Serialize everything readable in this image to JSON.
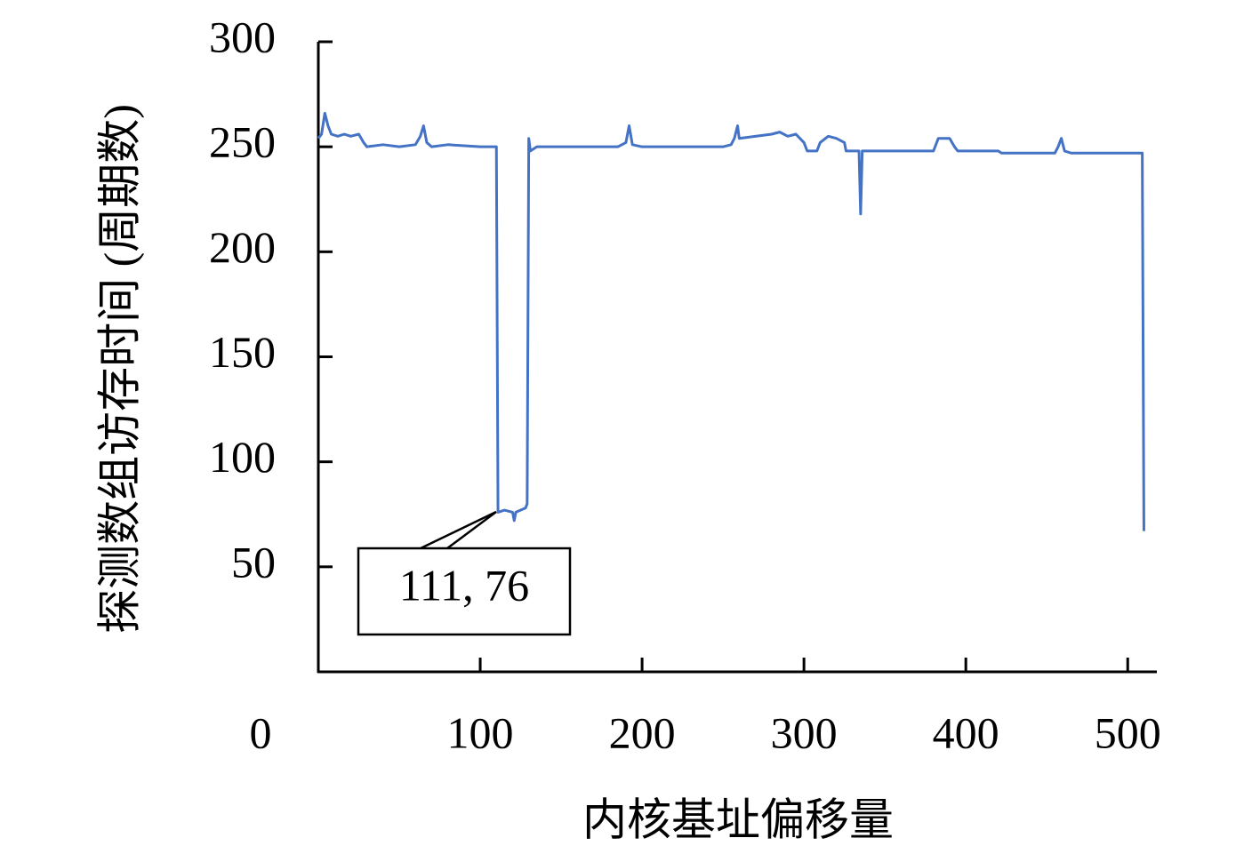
{
  "chart_data": {
    "type": "line",
    "xlabel": "内核基址偏移量",
    "ylabel": "探测数组访存时间 (周期数)",
    "annotation": "111, 76",
    "color": "#4472c4",
    "x": [
      0,
      2,
      4,
      6,
      8,
      12,
      16,
      20,
      25,
      28,
      30,
      40,
      50,
      60,
      63,
      65,
      67,
      70,
      80,
      100,
      109,
      110,
      111,
      115,
      120,
      121,
      122,
      125,
      128,
      129,
      130,
      131,
      135,
      150,
      185,
      190,
      192,
      194,
      200,
      250,
      255,
      257,
      259,
      260,
      270,
      280,
      285,
      290,
      295,
      300,
      302,
      303,
      308,
      310,
      315,
      320,
      325,
      326,
      330,
      334,
      335,
      336,
      340,
      380,
      383,
      390,
      393,
      395,
      420,
      422,
      455,
      457,
      459,
      461,
      465,
      500,
      509,
      510
    ],
    "values": [
      254,
      256,
      266,
      260,
      256,
      255,
      256,
      255,
      256,
      252,
      250,
      251,
      250,
      251,
      255,
      260,
      252,
      250,
      251,
      250,
      250,
      250,
      76,
      77,
      76,
      72,
      76,
      77,
      78,
      80,
      254,
      248,
      250,
      250,
      250,
      252,
      260,
      251,
      250,
      250,
      251,
      254,
      260,
      254,
      255,
      256,
      257,
      255,
      256,
      252,
      248,
      248,
      248,
      252,
      255,
      254,
      252,
      248,
      248,
      248,
      218,
      248,
      248,
      248,
      254,
      254,
      250,
      248,
      248,
      247,
      247,
      250,
      254,
      248,
      247,
      247,
      247,
      67
    ],
    "xlim": [
      0,
      518
    ],
    "ylim": [
      0,
      300
    ],
    "xticks": [
      0,
      100,
      200,
      300,
      400,
      500
    ],
    "yticks": [
      50,
      100,
      150,
      200,
      250,
      300
    ]
  }
}
